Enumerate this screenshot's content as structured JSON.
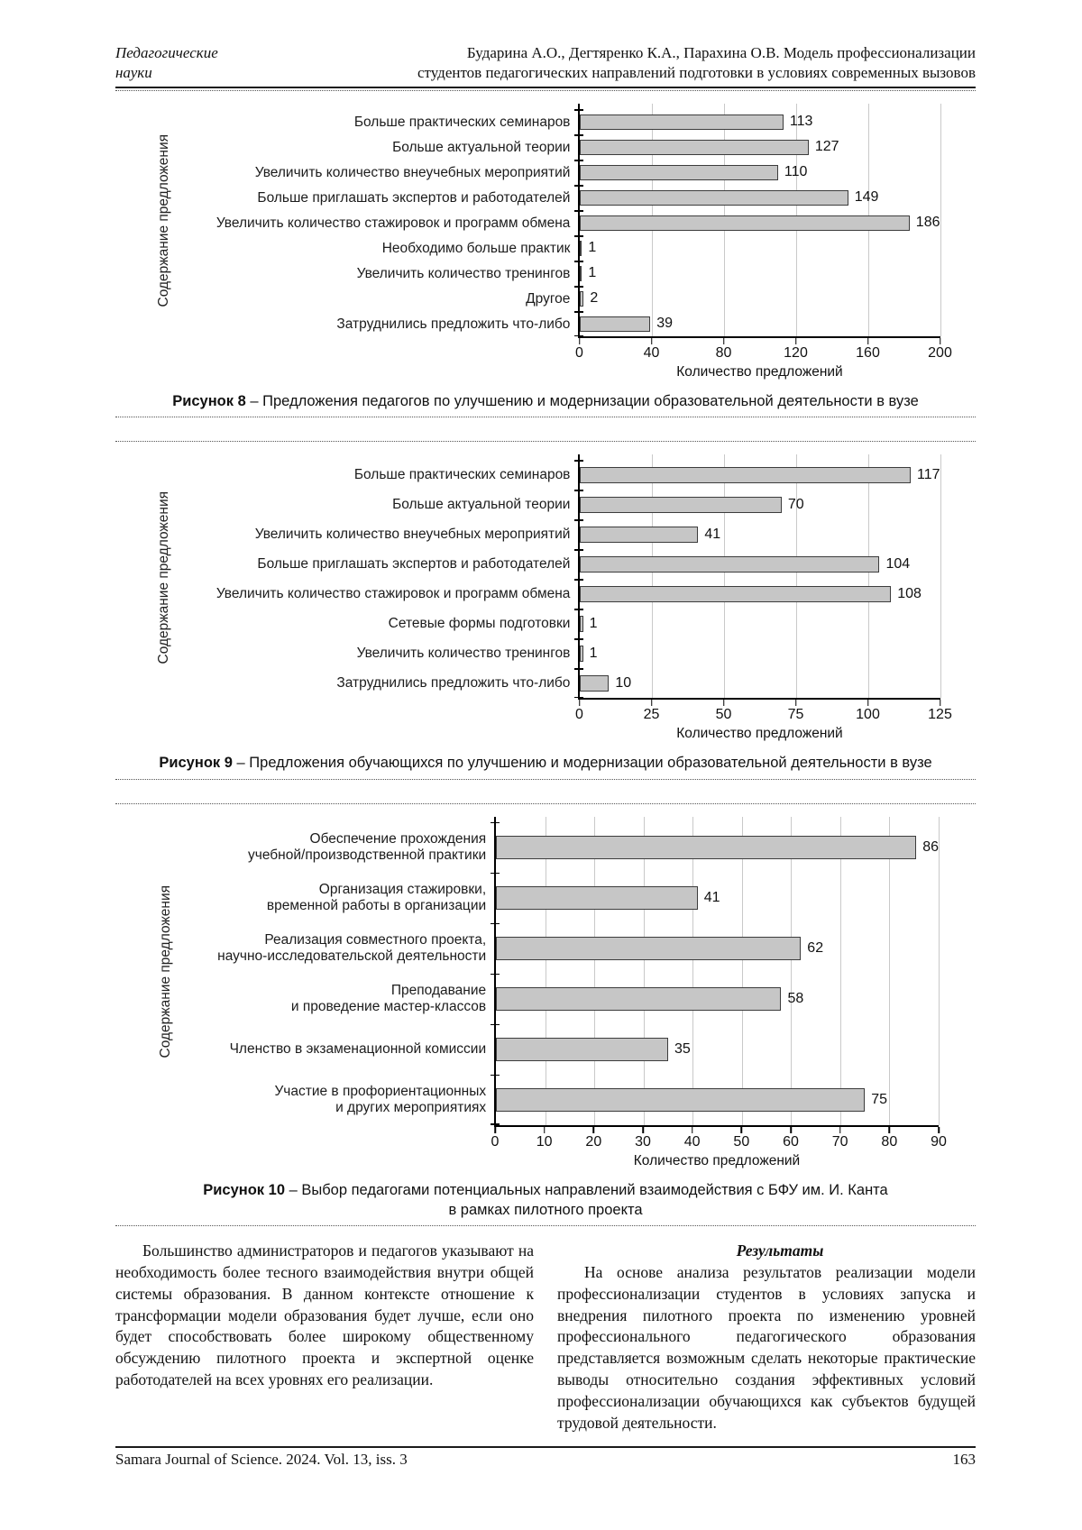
{
  "header": {
    "section": "Педагогические\nнауки",
    "running_title": "Бударина А.О., Дегтяренко К.А., Парахина О.В. Модель профессионализации\nстудентов педагогических направлений подготовки в условиях современных вызовов"
  },
  "chart_data": [
    {
      "type": "bar",
      "orientation": "horizontal",
      "categories": [
        "Больше практических семинаров",
        "Больше актуальной теории",
        "Увеличить количество внеучебных мероприятий",
        "Больше приглашать экспертов и работодателей",
        "Увеличить количество стажировок и программ обмена",
        "Необходимо больше практик",
        "Увеличить количество тренингов",
        "Другое",
        "Затруднились предложить что-либо"
      ],
      "values": [
        113,
        127,
        110,
        149,
        186,
        1,
        1,
        2,
        39
      ],
      "xlabel": "Количество предложений",
      "ylabel": "Содержание предложения",
      "xlim": [
        0,
        200
      ],
      "xticks": [
        0,
        40,
        80,
        120,
        160,
        200
      ],
      "grid": true,
      "legend": "none",
      "bar_color": "#c6c6c6",
      "bar_border": "#3c3c3c",
      "grid_color": "#c9c9c9",
      "caption_label": "Рисунок 8",
      "caption_text": " – Предложения педагогов по улучшению и модернизации образовательной деятельности в вузе",
      "caption_line2": ""
    },
    {
      "type": "bar",
      "orientation": "horizontal",
      "categories": [
        "Больше практических семинаров",
        "Больше актуальной теории",
        "Увеличить количество внеучебных мероприятий",
        "Больше приглашать экспертов и работодателей",
        "Увеличить количество стажировок и программ обмена",
        "Сетевые формы подготовки",
        "Увеличить количество тренингов",
        "Затруднились предложить что-либо"
      ],
      "values": [
        117,
        70,
        41,
        104,
        108,
        1,
        1,
        10
      ],
      "xlabel": "Количество предложений",
      "ylabel": "Содержание предложения",
      "xlim": [
        0,
        125
      ],
      "xticks": [
        0,
        25,
        50,
        75,
        100,
        125
      ],
      "grid": true,
      "legend": "none",
      "bar_color": "#c6c6c6",
      "bar_border": "#3c3c3c",
      "grid_color": "#c9c9c9",
      "caption_label": "Рисунок 9",
      "caption_text": " – Предложения обучающихся по улучшению и модернизации образовательной деятельности в вузе",
      "caption_line2": ""
    },
    {
      "type": "bar",
      "orientation": "horizontal",
      "categories": [
        "Обеспечение прохождения\nучебной/производственной практики",
        "Организация стажировки,\nвременной работы в организации",
        "Реализация совместного проекта,\nнаучно-исследовательской деятельности",
        "Преподавание\nи проведение мастер-классов",
        "Членство в экзаменационной комиссии",
        "Участие в профориентационных\nи других мероприятиях"
      ],
      "values": [
        86,
        41,
        62,
        58,
        35,
        75
      ],
      "xlabel": "Количество предложений",
      "ylabel": "Содержание предложения",
      "xlim": [
        0,
        90
      ],
      "xticks": [
        0,
        10,
        20,
        30,
        40,
        50,
        60,
        70,
        80,
        90
      ],
      "grid": true,
      "legend": "none",
      "bar_color": "#c6c6c6",
      "bar_border": "#3c3c3c",
      "grid_color": "#c9c9c9",
      "caption_label": "Рисунок 10",
      "caption_text": " – Выбор педагогами потенциальных направлений взаимодействия с БФУ им. И. Канта",
      "caption_line2": "в рамках пилотного проекта"
    }
  ],
  "body": {
    "left_paragraph": "Большинство администраторов и педагогов указывают на необходимость более тесного взаимодействия внутри общей системы образования. В данном контексте отношение к трансформации модели образования будет лучше, если оно будет способствовать более широкому общественному обсуждению пилотного проекта и экспертной оценке работодателей на всех уровнях его реализации.",
    "results_heading": "Результаты",
    "right_paragraph": "На основе анализа результатов реализации модели профессионализации студентов в условиях запуска и внедрения пилотного проекта по изменению уровней профессионального педагогического образования представляется возможным сделать некоторые практические выводы относительно создания эффективных условий профессионализации обучающихся как субъектов будущей трудовой деятельности."
  },
  "footer": {
    "journal": "Samara Journal of Science. 2024. Vol. 13, iss. 3",
    "page": "163"
  }
}
